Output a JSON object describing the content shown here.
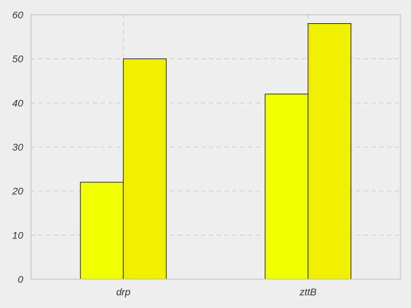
{
  "chart_data": {
    "type": "bar",
    "categories": [
      "drp",
      "zttB"
    ],
    "series": [
      {
        "values": [
          22,
          42
        ],
        "color": "#f2ff00"
      },
      {
        "values": [
          50,
          58
        ],
        "color": "#f0f000"
      }
    ],
    "ylim": [
      0,
      60
    ],
    "yticks": [
      0,
      10,
      20,
      30,
      40,
      50,
      60
    ],
    "ytick_labels": [
      "0",
      "10",
      "20",
      "30",
      "40",
      "50",
      "60"
    ],
    "grid": true,
    "background": "#eeeeee",
    "title": "",
    "xlabel": "",
    "ylabel": ""
  }
}
